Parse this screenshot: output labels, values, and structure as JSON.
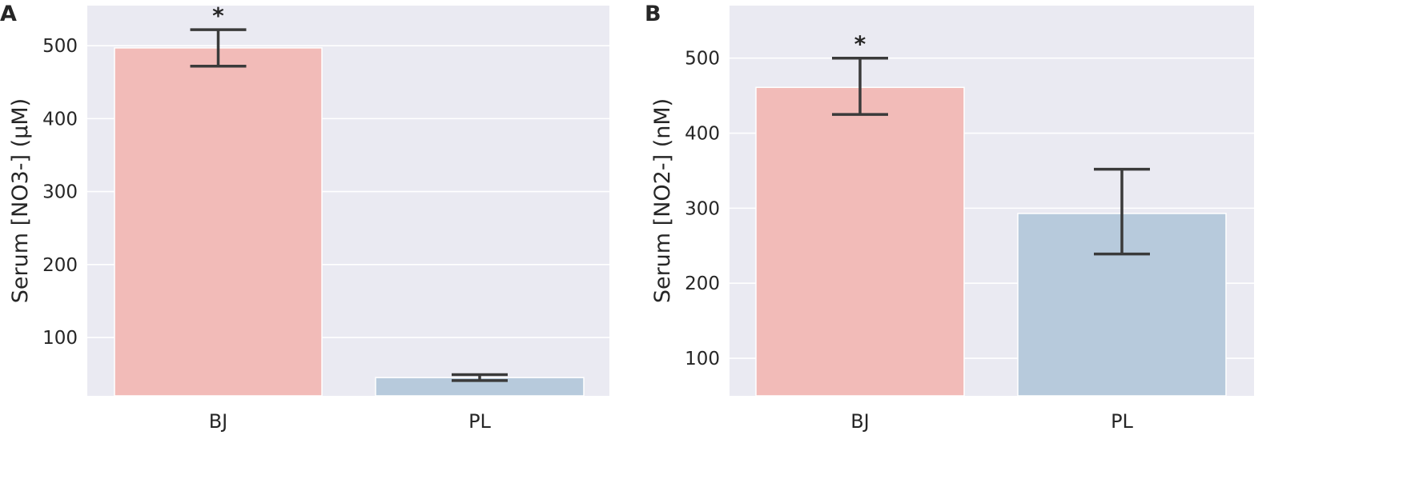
{
  "colors": {
    "plot_background": "#eaeaf2",
    "grid": "#ffffff",
    "bar_BJ": "#f2bbb8",
    "bar_PL": "#b7cadc",
    "error_bar": "#3a3a3a"
  },
  "chart_data": [
    {
      "panel": "A",
      "type": "bar",
      "categories": [
        "BJ",
        "PL"
      ],
      "values": [
        497,
        45
      ],
      "error_low": [
        472,
        41
      ],
      "error_high": [
        522,
        49
      ],
      "significance": [
        "*",
        ""
      ],
      "xlabel": "",
      "ylabel": "Serum [NO3-] (μM)",
      "ylim": [
        20,
        555
      ],
      "yticks": [
        100,
        200,
        300,
        400,
        500
      ],
      "grid": true,
      "legend": "none"
    },
    {
      "panel": "B",
      "type": "bar",
      "categories": [
        "BJ",
        "PL"
      ],
      "values": [
        461,
        293
      ],
      "error_low": [
        425,
        239
      ],
      "error_high": [
        500,
        352
      ],
      "significance": [
        "*",
        ""
      ],
      "xlabel": "",
      "ylabel": "Serum [NO2-] (nM)",
      "ylim": [
        50,
        570
      ],
      "yticks": [
        100,
        200,
        300,
        400,
        500
      ],
      "grid": true,
      "legend": "none"
    }
  ]
}
